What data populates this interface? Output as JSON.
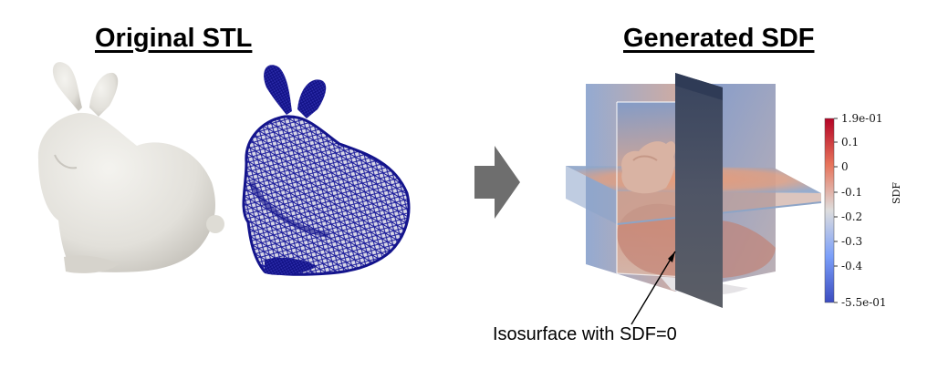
{
  "titles": {
    "left": "Original STL",
    "right": "Generated SDF"
  },
  "colorbar": {
    "title": "SDF",
    "max_label": "1.9e-01",
    "min_label": "-5.5e-01",
    "tick_labels": [
      "0.1",
      "0",
      "-0.1",
      "-0.2",
      "-0.3",
      "-0.4"
    ],
    "colors": {
      "high": "#b40426",
      "mid": "#dddddd",
      "low": "#3b4cc0"
    }
  },
  "annotation": "Isosurface with SDF=0",
  "colors": {
    "mesh_wire": "#1a1a9a",
    "bunny_surface": "#e8e6e1",
    "arrow_fill": "#6e6e6e"
  },
  "icons": {
    "process_arrow": "right-arrow-icon"
  }
}
